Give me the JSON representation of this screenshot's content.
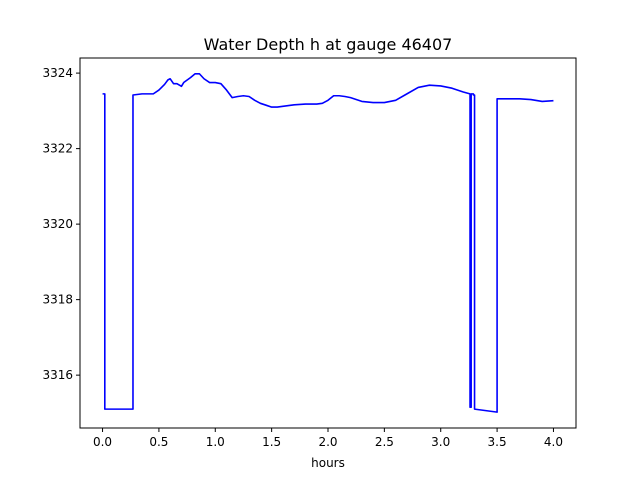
{
  "chart_data": {
    "type": "line",
    "title": "Water Depth h at gauge 46407",
    "xlabel": "hours",
    "ylabel": "",
    "xlim": [
      -0.2,
      4.2
    ],
    "ylim": [
      3314.6,
      3324.4
    ],
    "xticks": [
      0.0,
      0.5,
      1.0,
      1.5,
      2.0,
      2.5,
      3.0,
      3.5,
      4.0
    ],
    "xtick_labels": [
      "0.0",
      "0.5",
      "1.0",
      "1.5",
      "2.0",
      "2.5",
      "3.0",
      "3.5",
      "4.0"
    ],
    "yticks": [
      3316,
      3318,
      3320,
      3322,
      3324
    ],
    "ytick_labels": [
      "3316",
      "3318",
      "3320",
      "3322",
      "3324"
    ],
    "grid": false,
    "series": [
      {
        "color": "#0000ff",
        "x": [
          0.0,
          0.02,
          0.02,
          0.27,
          0.27,
          0.35,
          0.45,
          0.5,
          0.55,
          0.58,
          0.6,
          0.63,
          0.66,
          0.7,
          0.72,
          0.78,
          0.82,
          0.86,
          0.9,
          0.95,
          1.0,
          1.05,
          1.1,
          1.15,
          1.2,
          1.25,
          1.3,
          1.35,
          1.4,
          1.45,
          1.5,
          1.55,
          1.6,
          1.65,
          1.7,
          1.8,
          1.9,
          1.95,
          2.0,
          2.05,
          2.1,
          2.15,
          2.2,
          2.3,
          2.4,
          2.5,
          2.6,
          2.7,
          2.8,
          2.9,
          3.0,
          3.1,
          3.2,
          3.26,
          3.26,
          3.27,
          3.27,
          3.29,
          3.29,
          3.3,
          3.3,
          3.5,
          3.5,
          3.55,
          3.7,
          3.8,
          3.9,
          4.0
        ],
        "y": [
          3323.45,
          3323.45,
          3315.1,
          3315.1,
          3323.42,
          3323.45,
          3323.45,
          3323.55,
          3323.7,
          3323.82,
          3323.85,
          3323.72,
          3323.72,
          3323.65,
          3323.75,
          3323.88,
          3323.98,
          3323.98,
          3323.85,
          3323.75,
          3323.75,
          3323.72,
          3323.55,
          3323.35,
          3323.38,
          3323.4,
          3323.38,
          3323.28,
          3323.2,
          3323.15,
          3323.1,
          3323.1,
          3323.12,
          3323.14,
          3323.16,
          3323.18,
          3323.18,
          3323.2,
          3323.28,
          3323.4,
          3323.4,
          3323.38,
          3323.35,
          3323.25,
          3323.22,
          3323.22,
          3323.28,
          3323.45,
          3323.62,
          3323.68,
          3323.66,
          3323.6,
          3323.5,
          3323.45,
          3315.15,
          3315.15,
          3323.45,
          3323.45,
          3323.42,
          3323.42,
          3315.1,
          3315.02,
          3323.32,
          3323.32,
          3323.32,
          3323.3,
          3323.25,
          3323.27
        ]
      }
    ]
  }
}
